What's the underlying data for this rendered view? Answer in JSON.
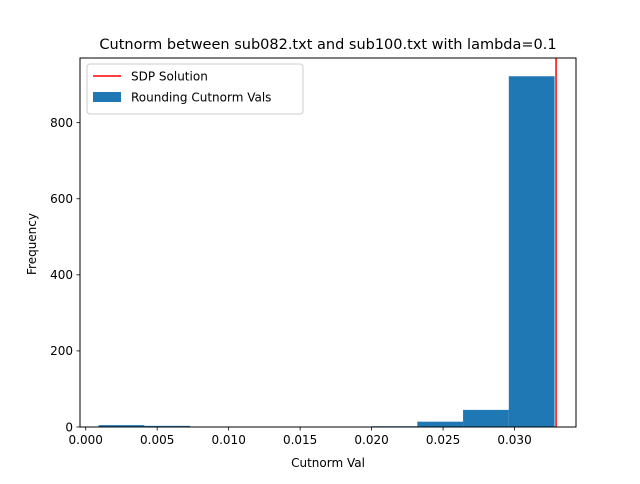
{
  "chart_data": {
    "type": "bar",
    "title": "Cutnorm between sub082.txt and sub100.txt with lambda=0.1",
    "xlabel": "Cutnorm Val",
    "ylabel": "Frequency",
    "xlim": [
      -0.0004,
      0.0343
    ],
    "ylim": [
      0,
      970
    ],
    "xticks": [
      0.0,
      0.005,
      0.01,
      0.015,
      0.02,
      0.025,
      0.03
    ],
    "xtick_labels": [
      "0.000",
      "0.005",
      "0.010",
      "0.015",
      "0.020",
      "0.025",
      "0.030"
    ],
    "yticks": [
      0,
      200,
      400,
      600,
      800
    ],
    "ytick_labels": [
      "0",
      "200",
      "400",
      "600",
      "800"
    ],
    "grid": false,
    "legend_position": "top-left",
    "series": [
      {
        "name": "Rounding Cutnorm Vals",
        "kind": "histogram",
        "color": "#1f77b4",
        "bins": [
          0.0009,
          0.0041,
          0.0073,
          0.0104,
          0.0136,
          0.0168,
          0.02,
          0.0232,
          0.0264,
          0.0296,
          0.0328
        ],
        "counts": [
          5,
          3,
          0,
          0,
          1,
          1,
          2,
          14,
          45,
          922
        ]
      },
      {
        "name": "SDP Solution",
        "kind": "vline",
        "color": "#ff0000",
        "x": 0.0328
      }
    ]
  }
}
